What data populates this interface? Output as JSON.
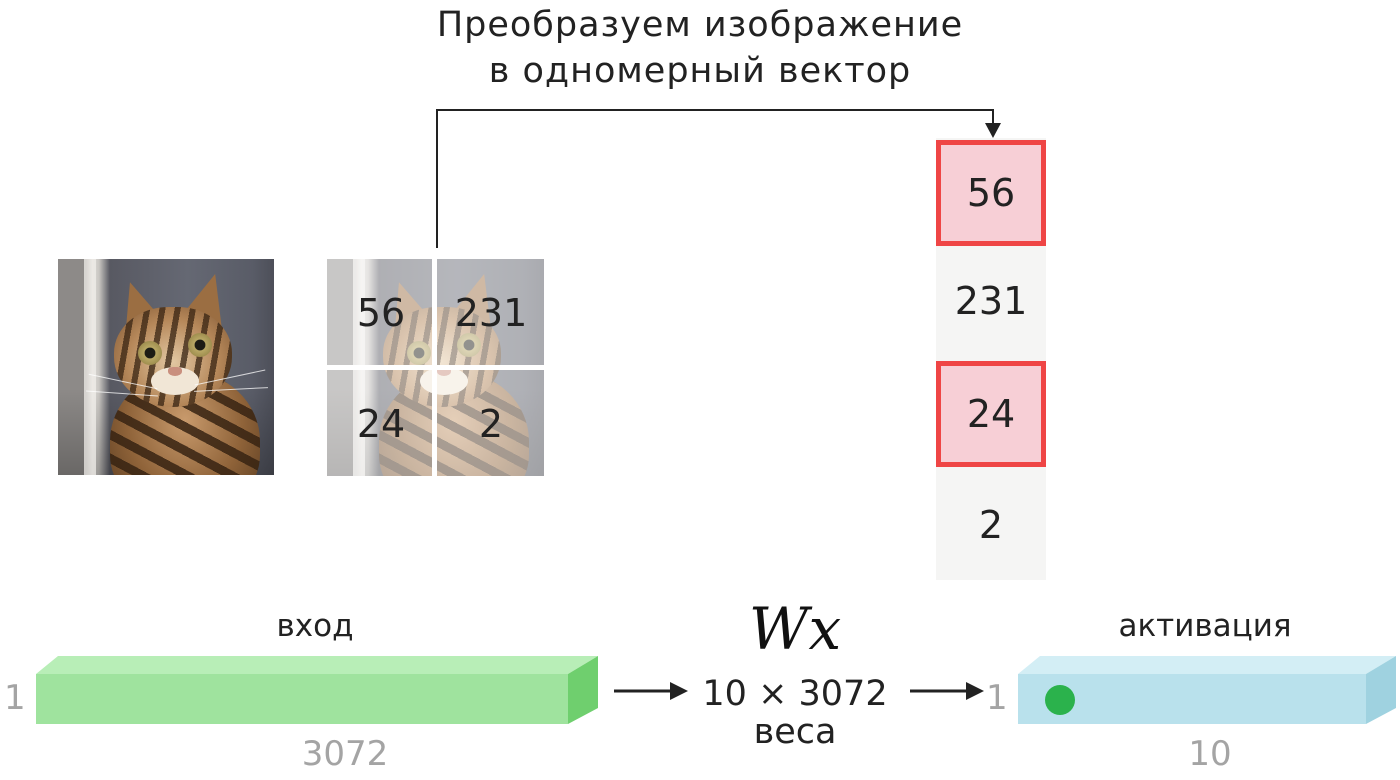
{
  "title": {
    "line1": "Преобразуем изображение",
    "line2": "в одномерный вектор"
  },
  "pixel_grid": {
    "cells": [
      "56",
      "231",
      "24",
      "2"
    ]
  },
  "vector": {
    "cells": [
      {
        "value": "56",
        "highlighted": true
      },
      {
        "value": "231",
        "highlighted": false
      },
      {
        "value": "24",
        "highlighted": true
      },
      {
        "value": "2",
        "highlighted": false
      }
    ]
  },
  "input": {
    "label": "вход",
    "rows": "1",
    "cols": "3072"
  },
  "weights": {
    "formula": "Wx",
    "dims": "10 × 3072",
    "label": "веса"
  },
  "activation": {
    "label": "активация",
    "rows": "1",
    "cols": "10"
  },
  "colors": {
    "input_front": "#9fe39e",
    "input_top": "#b8eeb7",
    "input_side": "#6fcf6e",
    "activation_front": "#b9e1ec",
    "activation_top": "#d3eef5",
    "activation_side": "#9fd2e0",
    "activation_dot": "#2bb24c",
    "highlight_fill": "#f7cfd6",
    "highlight_border": "#ef4545",
    "vector_bg": "#f5f5f4"
  },
  "icons": {
    "photo": "cat-photo",
    "arrow": "arrow-right-icon"
  }
}
